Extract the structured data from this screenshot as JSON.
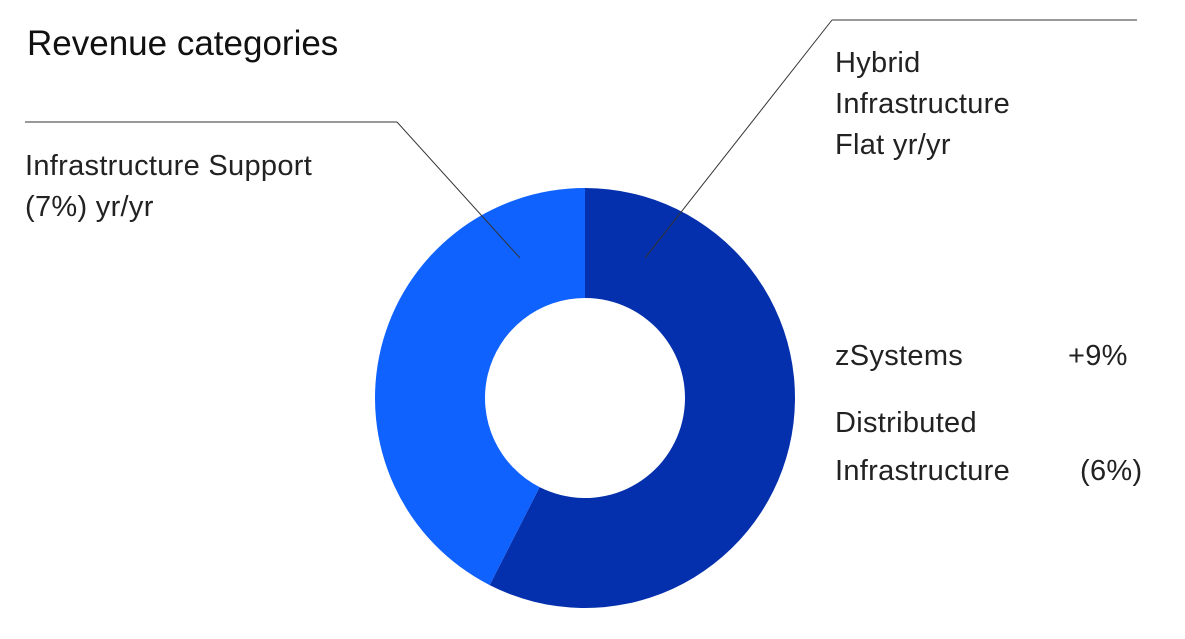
{
  "chart_data": {
    "type": "pie",
    "variant": "donut",
    "title": "Revenue categories",
    "slices": [
      {
        "label": "Hybrid Infrastructure",
        "note": "Flat yr/yr",
        "value": 57.5,
        "color": "#0530ad"
      },
      {
        "label": "Infrastructure Support",
        "note": "(7%) yr/yr",
        "value": 42.5,
        "color": "#0f62fe"
      }
    ],
    "annotations": [
      {
        "label": "zSystems",
        "value": "+9%"
      },
      {
        "label_line1": "Distributed",
        "label_line2": "Infrastructure",
        "value": "(6%)"
      }
    ],
    "start_angle": "top, clockwise",
    "legend": "none"
  }
}
